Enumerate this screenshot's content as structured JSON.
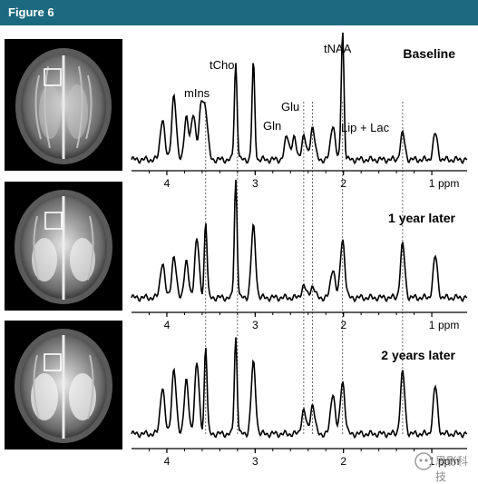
{
  "figure": {
    "title": "Figure 6",
    "colors": {
      "header": "#1c6a80",
      "trace": "#000000"
    }
  },
  "chart_data": {
    "type": "line",
    "x_axis": {
      "label": "ppm",
      "ticks": [
        4,
        3,
        2,
        1
      ],
      "range": [
        4.4,
        0.6
      ],
      "reversed": true
    },
    "peak_labels": [
      {
        "text": "mIns",
        "ppm": 3.56
      },
      {
        "text": "tCho",
        "ppm": 3.2
      },
      {
        "text": "Gln",
        "ppm": 2.45
      },
      {
        "text": "Glu",
        "ppm": 2.35
      },
      {
        "text": "tNAA",
        "ppm": 2.01
      },
      {
        "text": "Lip + Lac",
        "ppm": 1.33
      }
    ],
    "reference_lines_ppm": [
      3.56,
      3.2,
      2.45,
      2.35,
      2.01,
      1.33
    ],
    "spectra": [
      {
        "label": "Baseline",
        "peaks": [
          [
            4.05,
            0.35
          ],
          [
            3.92,
            0.55
          ],
          [
            3.78,
            0.35
          ],
          [
            3.7,
            0.4
          ],
          [
            3.61,
            0.45
          ],
          [
            3.56,
            0.38
          ],
          [
            3.22,
            0.82
          ],
          [
            3.02,
            0.82
          ],
          [
            2.64,
            0.2
          ],
          [
            2.56,
            0.18
          ],
          [
            2.45,
            0.2
          ],
          [
            2.35,
            0.28
          ],
          [
            2.12,
            0.3
          ],
          [
            2.01,
            1.1
          ],
          [
            1.33,
            0.22
          ],
          [
            0.96,
            0.22
          ]
        ]
      },
      {
        "label": "1 year later",
        "peaks": [
          [
            4.05,
            0.3
          ],
          [
            3.92,
            0.35
          ],
          [
            3.78,
            0.3
          ],
          [
            3.66,
            0.5
          ],
          [
            3.56,
            0.65
          ],
          [
            3.22,
            1.0
          ],
          [
            3.02,
            0.6
          ],
          [
            2.45,
            0.1
          ],
          [
            2.35,
            0.1
          ],
          [
            2.12,
            0.25
          ],
          [
            2.01,
            0.5
          ],
          [
            1.33,
            0.45
          ],
          [
            0.96,
            0.35
          ]
        ]
      },
      {
        "label": "2 years later",
        "peaks": [
          [
            4.05,
            0.4
          ],
          [
            3.92,
            0.55
          ],
          [
            3.78,
            0.45
          ],
          [
            3.66,
            0.6
          ],
          [
            3.56,
            0.75
          ],
          [
            3.22,
            0.82
          ],
          [
            3.02,
            0.6
          ],
          [
            2.45,
            0.2
          ],
          [
            2.35,
            0.25
          ],
          [
            2.12,
            0.35
          ],
          [
            2.01,
            0.45
          ],
          [
            1.33,
            0.52
          ],
          [
            0.96,
            0.4
          ]
        ]
      }
    ]
  },
  "watermark": {
    "text": "思影科技"
  }
}
